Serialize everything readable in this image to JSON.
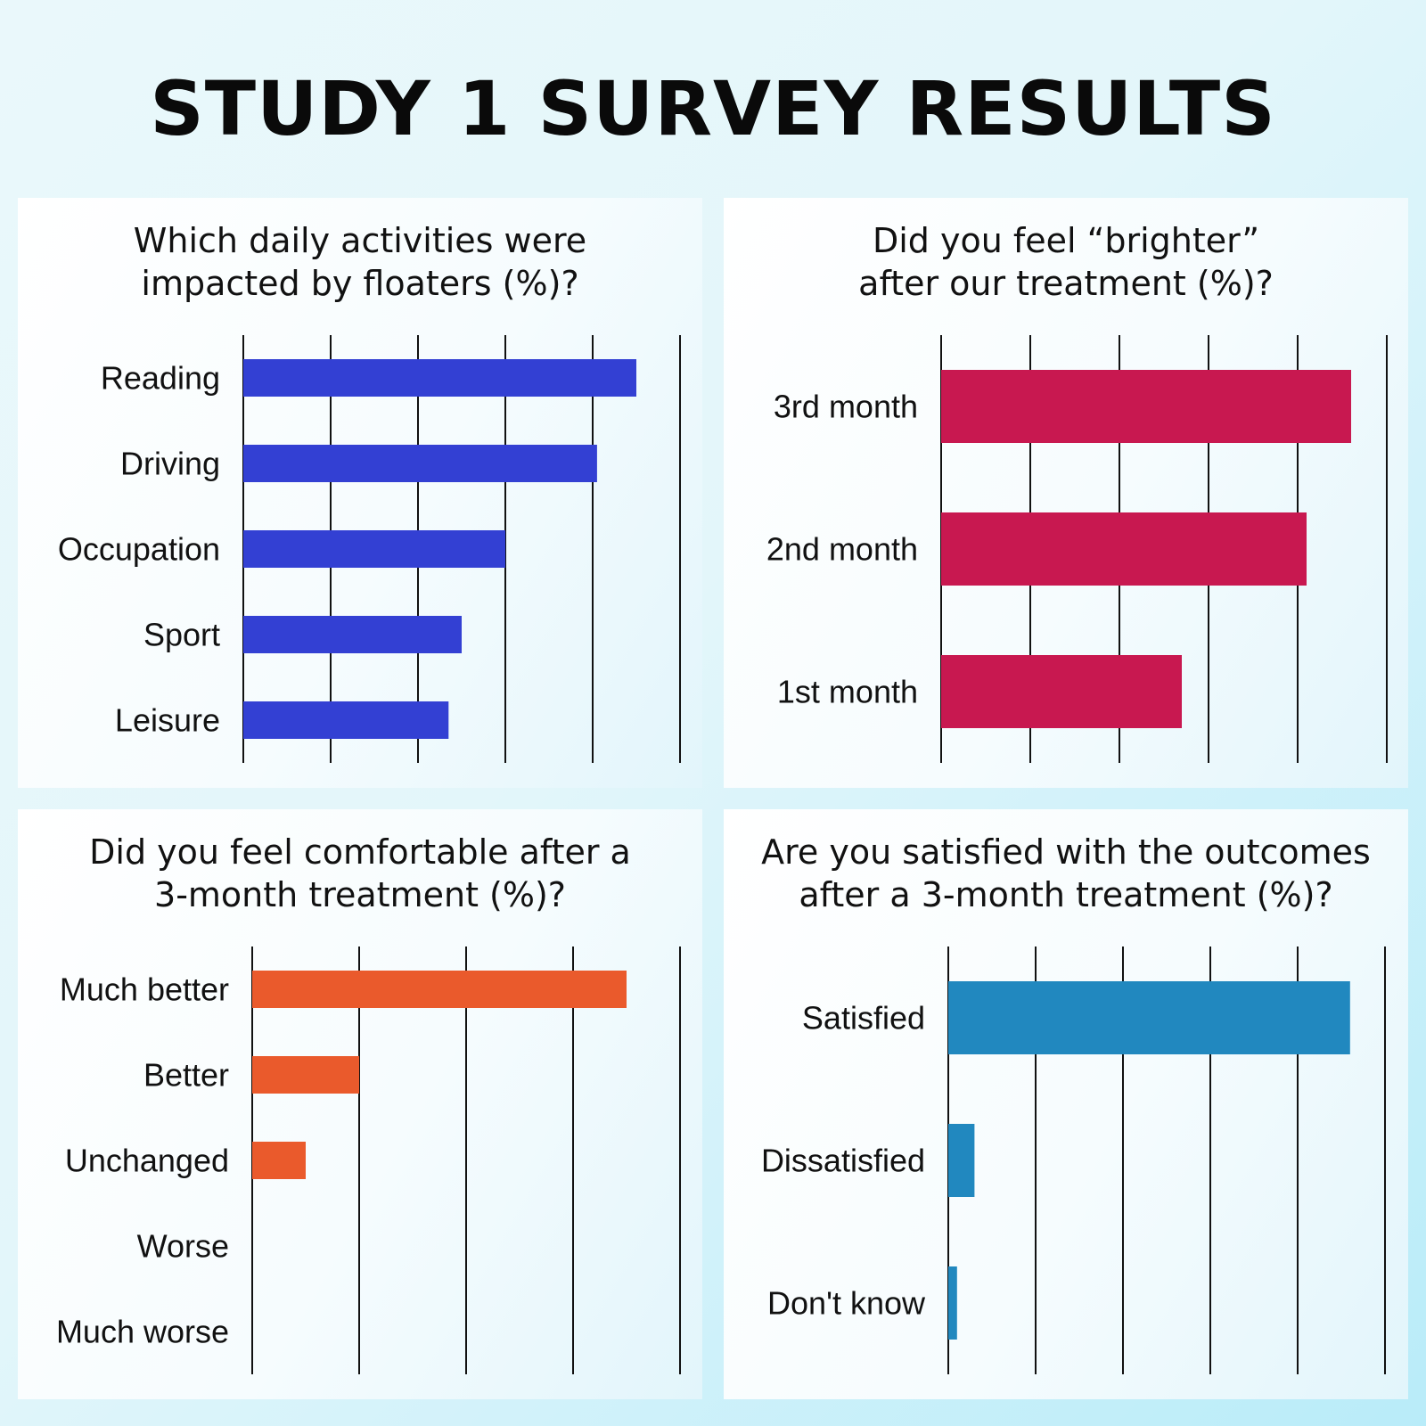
{
  "title": "STUDY 1 SURVEY RESULTS",
  "chart_data": [
    {
      "type": "bar",
      "orientation": "horizontal",
      "title": "Which daily activities were\nimpacted by floaters (%)?",
      "categories": [
        "Reading",
        "Driving",
        "Occupation",
        "Sport",
        "Leisure"
      ],
      "values": [
        90,
        81,
        60,
        50,
        47
      ],
      "xlim": [
        0,
        100
      ],
      "grid": true,
      "color": "#3340d3"
    },
    {
      "type": "bar",
      "orientation": "horizontal",
      "title": "Did you feel “brighter”\nafter our treatment (%)?",
      "categories": [
        "3rd month",
        "2nd month",
        "1st month"
      ],
      "values": [
        92,
        82,
        54
      ],
      "xlim": [
        0,
        100
      ],
      "grid": true,
      "color": "#c81850"
    },
    {
      "type": "bar",
      "orientation": "horizontal",
      "title": "Did you feel comfortable after a\n3-month treatment (%)?",
      "categories": [
        "Much better",
        "Better",
        "Unchanged",
        "Worse",
        "Much worse"
      ],
      "values": [
        70,
        20,
        10,
        0,
        0
      ],
      "xlim": [
        0,
        80
      ],
      "grid": true,
      "color": "#ea5a2c"
    },
    {
      "type": "bar",
      "orientation": "horizontal",
      "title": "Are you satisfied with the outcomes\nafter a 3-month treatment (%)?",
      "categories": [
        "Satisfied",
        "Dissatisfied",
        "Don't know"
      ],
      "values": [
        92,
        6,
        2
      ],
      "xlim": [
        0,
        100
      ],
      "grid": true,
      "color": "#2188bf"
    }
  ]
}
